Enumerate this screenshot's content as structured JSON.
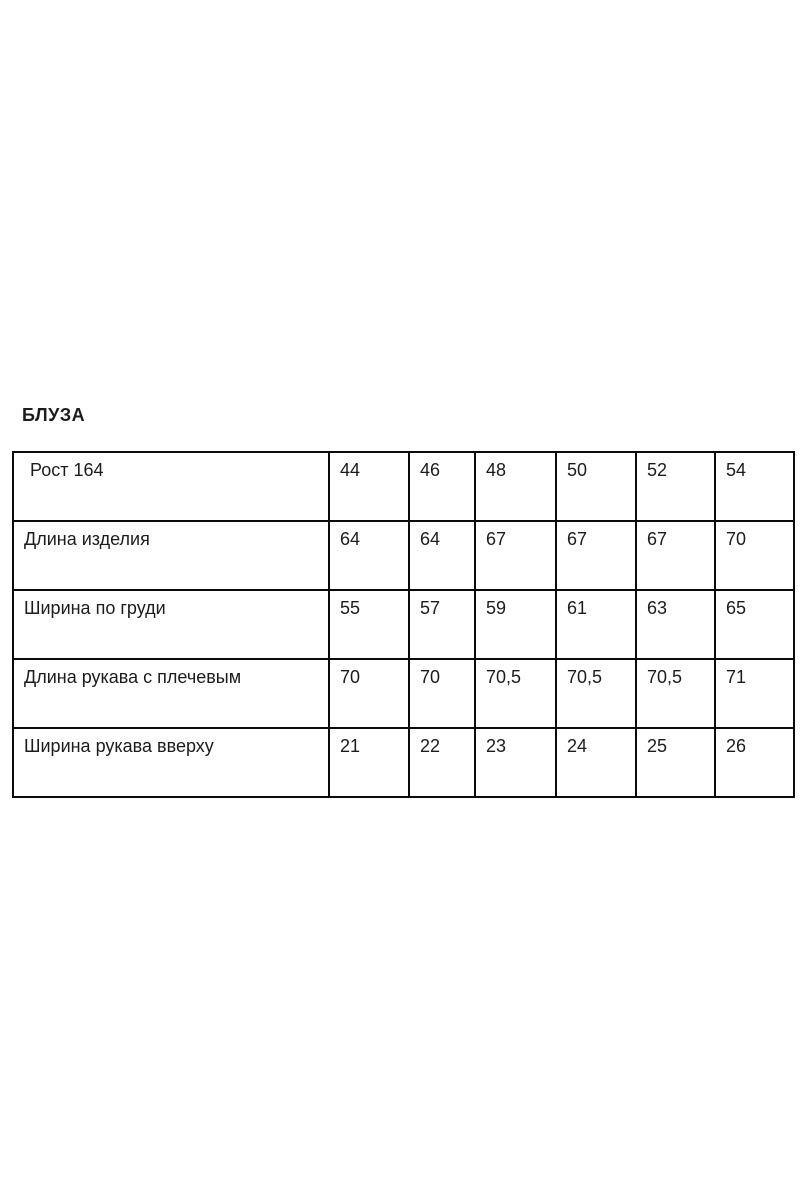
{
  "page": {
    "background": "#ffffff",
    "border_color": "#0b0b0b",
    "text_color": "#1c1c1c"
  },
  "title": "БЛУЗА",
  "table": {
    "header": {
      "label": "Рост 164",
      "sizes": [
        "44",
        "46",
        "48",
        "50",
        "52",
        "54"
      ]
    },
    "rows": [
      {
        "label": "Длина изделия",
        "values": [
          "64",
          "64",
          "67",
          "67",
          "67",
          "70"
        ]
      },
      {
        "label": "Ширина по груди",
        "values": [
          "55",
          "57",
          "59",
          "61",
          "63",
          "65"
        ]
      },
      {
        "label": "Длина рукава с плечевым",
        "values": [
          "70",
          "70",
          "70,5",
          "70,5",
          "70,5",
          "71"
        ]
      },
      {
        "label": "Ширина рукава вверху",
        "values": [
          "21",
          "22",
          "23",
          "24",
          "25",
          "26"
        ]
      }
    ]
  }
}
